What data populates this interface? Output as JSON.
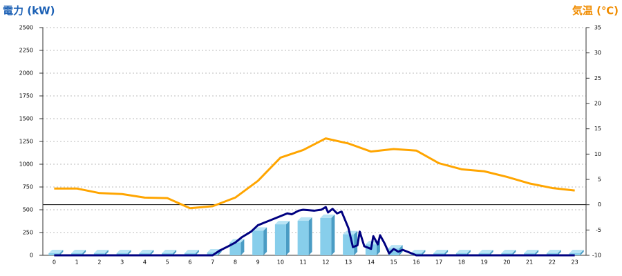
{
  "chart_data": {
    "type": "bar",
    "y_title": "電力 (kW)",
    "y2_title": "気温 (℃)",
    "xlim": [
      -0.5,
      23.5
    ],
    "xticks": [
      0,
      1,
      2,
      3,
      4,
      5,
      6,
      7,
      8,
      9,
      10,
      11,
      12,
      13,
      14,
      15,
      16,
      17,
      18,
      19,
      20,
      21,
      22,
      23
    ],
    "ylim": [
      0,
      2500
    ],
    "yticks": [
      0,
      250,
      500,
      750,
      1000,
      1250,
      1500,
      1750,
      2000,
      2250,
      2500
    ],
    "y2lim": [
      -10,
      35
    ],
    "y2ticks": [
      -10,
      -5,
      0,
      5,
      10,
      15,
      20,
      25,
      30,
      35
    ],
    "grid": true,
    "series": [
      {
        "type": "bar",
        "color": "#87ceeb",
        "x": [
          0,
          1,
          2,
          3,
          4,
          5,
          6,
          7,
          8,
          9,
          10,
          11,
          12,
          13,
          14,
          15,
          16,
          17,
          18,
          19,
          20,
          21,
          22,
          23
        ],
        "values": [
          0,
          0,
          0,
          0,
          0,
          0,
          0,
          30,
          140,
          270,
          340,
          380,
          410,
          230,
          120,
          75,
          0,
          0,
          0,
          0,
          0,
          0,
          0,
          0
        ]
      },
      {
        "type": "line",
        "color": "#000080",
        "x": [
          0,
          7,
          7.3,
          7.7,
          8,
          8.3,
          8.7,
          9,
          9.5,
          10,
          10.3,
          10.5,
          10.8,
          11,
          11.5,
          11.8,
          12,
          12.1,
          12.3,
          12.5,
          12.7,
          13,
          13.2,
          13.4,
          13.5,
          13.7,
          14,
          14.1,
          14.3,
          14.4,
          14.6,
          14.8,
          15,
          15.2,
          15.4,
          15.7,
          16,
          23
        ],
        "values": [
          0,
          0,
          50,
          100,
          140,
          200,
          260,
          330,
          380,
          430,
          460,
          450,
          490,
          500,
          490,
          500,
          530,
          470,
          510,
          460,
          480,
          300,
          90,
          110,
          260,
          100,
          70,
          210,
          120,
          220,
          130,
          20,
          70,
          40,
          60,
          30,
          0,
          0
        ]
      },
      {
        "type": "line",
        "axis": "y2",
        "color": "#ffa500",
        "x": [
          0,
          1,
          2,
          3,
          4,
          5,
          6,
          7,
          8,
          9,
          10,
          11,
          12,
          13,
          14,
          15,
          16,
          17,
          18,
          19,
          20,
          21,
          22,
          23
        ],
        "values": [
          3.2,
          3.2,
          2.3,
          2.1,
          1.4,
          1.3,
          -0.7,
          -0.3,
          1.4,
          4.7,
          9.3,
          10.8,
          13.1,
          12.1,
          10.5,
          11,
          10.7,
          8.2,
          7.0,
          6.6,
          5.5,
          4.2,
          3.3,
          2.8
        ]
      }
    ]
  }
}
